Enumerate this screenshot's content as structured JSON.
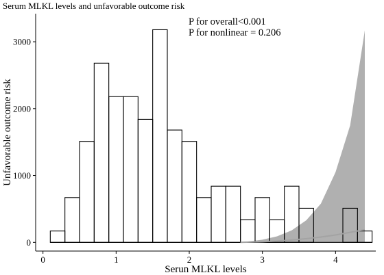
{
  "chart_data": {
    "type": "bar",
    "title": "Serum MLKL levels and unfavorable outcome risk",
    "xlabel": "Serun MLKL levels",
    "ylabel": "Unfavorable outcome risk",
    "xlim": [
      -0.1,
      4.55
    ],
    "ylim": [
      -130,
      3420
    ],
    "xticks": [
      0,
      1,
      2,
      3,
      4
    ],
    "yticks": [
      0,
      1000,
      2000,
      3000
    ],
    "bin_width": 0.2,
    "bins": [
      {
        "x0": 0.1,
        "value": 170
      },
      {
        "x0": 0.3,
        "value": 670
      },
      {
        "x0": 0.5,
        "value": 1510
      },
      {
        "x0": 0.7,
        "value": 2680
      },
      {
        "x0": 0.9,
        "value": 2180
      },
      {
        "x0": 1.1,
        "value": 2180
      },
      {
        "x0": 1.3,
        "value": 1840
      },
      {
        "x0": 1.5,
        "value": 3180
      },
      {
        "x0": 1.7,
        "value": 1680
      },
      {
        "x0": 1.9,
        "value": 1510
      },
      {
        "x0": 2.1,
        "value": 670
      },
      {
        "x0": 2.3,
        "value": 840
      },
      {
        "x0": 2.5,
        "value": 840
      },
      {
        "x0": 2.7,
        "value": 340
      },
      {
        "x0": 2.9,
        "value": 670
      },
      {
        "x0": 3.1,
        "value": 340
      },
      {
        "x0": 3.3,
        "value": 840
      },
      {
        "x0": 3.5,
        "value": 510
      },
      {
        "x0": 3.7,
        "value": 0
      },
      {
        "x0": 3.9,
        "value": 0
      },
      {
        "x0": 4.1,
        "value": 510
      },
      {
        "x0": 4.3,
        "value": 170
      }
    ],
    "risk_curve": {
      "x": [
        2.7,
        3.0,
        3.2,
        3.4,
        3.6,
        3.8,
        4.0,
        4.2,
        4.4
      ],
      "y": [
        0,
        10,
        20,
        35,
        55,
        80,
        110,
        150,
        190
      ],
      "lower": [
        0,
        0,
        0,
        0,
        0,
        0,
        0,
        0,
        0
      ],
      "upper": [
        0,
        40,
        90,
        180,
        330,
        580,
        1050,
        1750,
        3170
      ],
      "band_color": "#b0b0b0",
      "line_color": "#a3a3a3"
    },
    "annotations": [
      "P for overall<0.001",
      "P for nonlinear = 0.206"
    ]
  }
}
